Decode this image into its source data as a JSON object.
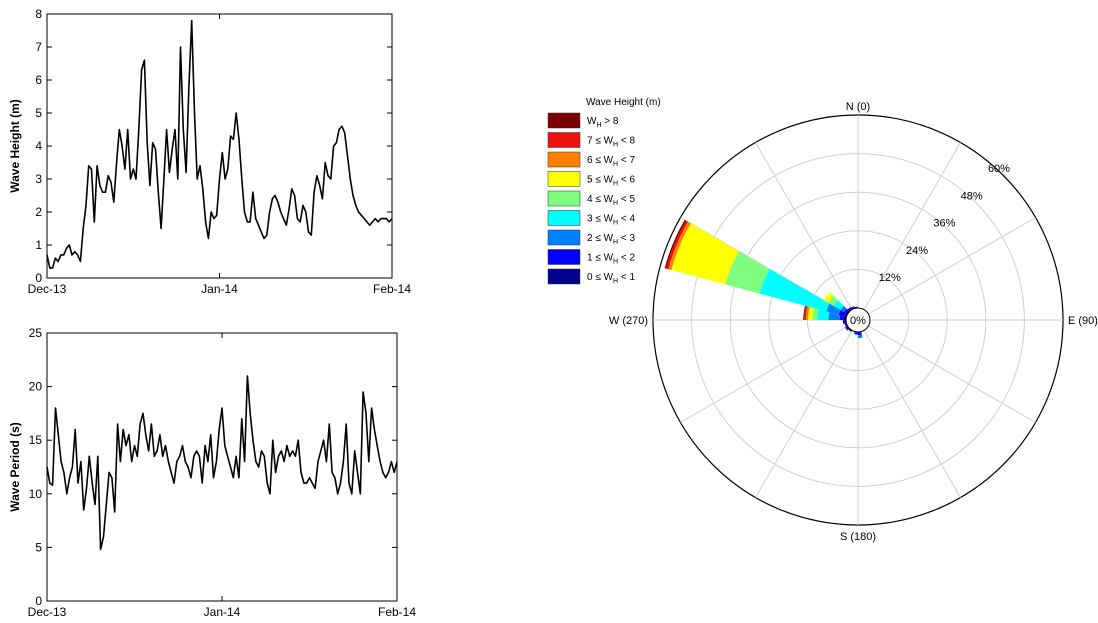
{
  "chart_data": [
    {
      "type": "line",
      "ylabel": "Wave Height (m)",
      "xlabel": "",
      "ylim": [
        0,
        8
      ],
      "yticks": [
        "0",
        "1",
        "2",
        "3",
        "4",
        "5",
        "6",
        "7",
        "8"
      ],
      "xticks": [
        {
          "label": "Dec-13",
          "x": 0
        },
        {
          "label": "Jan-14",
          "x": 31
        },
        {
          "label": "Feb-14",
          "x": 62
        }
      ],
      "xlim": [
        0,
        62
      ],
      "grid": false,
      "series": [
        {
          "color": "#000000",
          "x": [
            0,
            0.5,
            1,
            1.5,
            2,
            2.5,
            3,
            3.5,
            4,
            4.5,
            5,
            5.5,
            6,
            6.5,
            7,
            7.5,
            8,
            8.5,
            9,
            9.5,
            10,
            10.5,
            11,
            11.5,
            12,
            12.5,
            13,
            13.5,
            14,
            14.5,
            15,
            15.5,
            16,
            16.5,
            17,
            17.5,
            18,
            18.5,
            19,
            19.5,
            20,
            20.5,
            21,
            21.5,
            22,
            22.5,
            23,
            23.5,
            24,
            24.5,
            25,
            25.5,
            26,
            26.5,
            27,
            27.5,
            28,
            28.5,
            29,
            29.5,
            30,
            30.5,
            31,
            31.5,
            32,
            32.5,
            33,
            33.5,
            34,
            34.5,
            35,
            35.5,
            36,
            36.5,
            37,
            37.5,
            38,
            38.5,
            39,
            39.5,
            40,
            40.5,
            41,
            41.5,
            42,
            42.5,
            43,
            43.5,
            44,
            44.5,
            45,
            45.5,
            46,
            46.5,
            47,
            47.5,
            48,
            48.5,
            49,
            49.5,
            50,
            50.5,
            51,
            51.5,
            52,
            52.5,
            53,
            53.5,
            54,
            54.5,
            55,
            55.5,
            56,
            56.5,
            57,
            57.5,
            58,
            58.5,
            59,
            59.5,
            60,
            60.5,
            61,
            61.5,
            62
          ],
          "values": [
            0.7,
            0.3,
            0.3,
            0.6,
            0.5,
            0.7,
            0.7,
            0.9,
            1.0,
            0.7,
            0.8,
            0.7,
            0.5,
            1.5,
            2.2,
            3.4,
            3.3,
            1.7,
            3.4,
            2.8,
            2.6,
            2.6,
            3.1,
            2.9,
            2.3,
            3.5,
            4.5,
            4.0,
            3.3,
            4.5,
            3.0,
            3.3,
            3.0,
            4.5,
            6.3,
            6.6,
            4.1,
            2.8,
            4.1,
            3.9,
            2.6,
            1.5,
            3.0,
            4.5,
            3.2,
            3.9,
            4.5,
            3.0,
            7.0,
            4.5,
            3.2,
            5.8,
            7.8,
            5.0,
            3.0,
            3.4,
            2.7,
            1.7,
            1.2,
            2.0,
            1.8,
            1.9,
            3.0,
            3.8,
            3.0,
            3.3,
            4.3,
            4.2,
            5.0,
            4.2,
            3.0,
            2.0,
            1.7,
            1.7,
            2.6,
            1.8,
            1.6,
            1.4,
            1.2,
            1.3,
            2.0,
            2.4,
            2.5,
            2.3,
            2.0,
            1.8,
            1.6,
            2.1,
            2.7,
            2.5,
            1.8,
            1.7,
            2.2,
            2.0,
            1.4,
            1.3,
            2.6,
            3.1,
            2.8,
            2.4,
            3.5,
            3.1,
            3.0,
            4.0,
            4.1,
            4.5,
            4.6,
            4.4,
            3.7,
            3.0,
            2.5,
            2.2,
            2.0,
            1.9,
            1.8,
            1.7,
            1.6,
            1.7,
            1.8,
            1.7,
            1.8,
            1.8,
            1.8,
            1.7,
            1.8
          ]
        }
      ]
    },
    {
      "type": "line",
      "ylabel": "Wave Period (s)",
      "xlabel": "",
      "ylim": [
        0,
        25
      ],
      "yticks": [
        "0",
        "5",
        "10",
        "15",
        "20",
        "25"
      ],
      "xticks": [
        {
          "label": "Dec-13",
          "x": 0
        },
        {
          "label": "Jan-14",
          "x": 31
        },
        {
          "label": "Feb-14",
          "x": 62
        }
      ],
      "xlim": [
        0,
        62
      ],
      "grid": false,
      "series": [
        {
          "color": "#000000",
          "x": [
            0,
            0.5,
            1,
            1.5,
            2,
            2.5,
            3,
            3.5,
            4,
            4.5,
            5,
            5.5,
            6,
            6.5,
            7,
            7.5,
            8,
            8.5,
            9,
            9.5,
            10,
            10.5,
            11,
            11.5,
            12,
            12.5,
            13,
            13.5,
            14,
            14.5,
            15,
            15.5,
            16,
            16.5,
            17,
            17.5,
            18,
            18.5,
            19,
            19.5,
            20,
            20.5,
            21,
            21.5,
            22,
            22.5,
            23,
            23.5,
            24,
            24.5,
            25,
            25.5,
            26,
            26.5,
            27,
            27.5,
            28,
            28.5,
            29,
            29.5,
            30,
            30.5,
            31,
            31.5,
            32,
            32.5,
            33,
            33.5,
            34,
            34.5,
            35,
            35.5,
            36,
            36.5,
            37,
            37.5,
            38,
            38.5,
            39,
            39.5,
            40,
            40.5,
            41,
            41.5,
            42,
            42.5,
            43,
            43.5,
            44,
            44.5,
            45,
            45.5,
            46,
            46.5,
            47,
            47.5,
            48,
            48.5,
            49,
            49.5,
            50,
            50.5,
            51,
            51.5,
            52,
            52.5,
            53,
            53.5,
            54,
            54.5,
            55,
            55.5,
            56,
            56.5,
            57,
            57.5,
            58,
            58.5,
            59,
            59.5,
            60,
            60.5,
            61,
            61.5,
            62
          ],
          "values": [
            12.5,
            11.0,
            10.8,
            18.0,
            15.5,
            13.0,
            12.0,
            10.0,
            11.5,
            12.5,
            16.0,
            11.0,
            13.0,
            8.5,
            10.5,
            13.5,
            11.0,
            9.0,
            13.5,
            4.8,
            6.0,
            9.0,
            12.0,
            11.5,
            8.3,
            16.5,
            13.0,
            16.0,
            14.5,
            15.5,
            13.0,
            14.5,
            13.5,
            16.5,
            17.5,
            15.5,
            14.0,
            16.5,
            13.5,
            14.0,
            15.5,
            13.5,
            14.5,
            13.0,
            12.0,
            11.0,
            13.0,
            13.5,
            14.5,
            13.0,
            12.5,
            11.5,
            13.5,
            14.0,
            13.5,
            11.0,
            14.5,
            13.0,
            15.5,
            11.5,
            13.0,
            16.0,
            18.0,
            14.5,
            13.5,
            12.5,
            11.5,
            13.5,
            11.5,
            17.0,
            13.0,
            21.0,
            17.5,
            15.0,
            13.0,
            12.5,
            14.0,
            13.5,
            11.0,
            10.0,
            15.0,
            12.0,
            13.5,
            14.0,
            13.0,
            14.5,
            13.5,
            14.0,
            13.5,
            15.0,
            12.0,
            11.0,
            11.0,
            11.5,
            11.0,
            10.5,
            13.0,
            14.0,
            15.0,
            13.0,
            16.5,
            12.0,
            11.5,
            10.0,
            11.0,
            13.0,
            16.5,
            11.0,
            10.0,
            14.0,
            12.0,
            10.0,
            19.5,
            17.5,
            13.0,
            18.0,
            16.0,
            14.5,
            13.0,
            12.0,
            11.5,
            12.0,
            13.0,
            12.0,
            13.0
          ]
        }
      ]
    },
    {
      "type": "windrose",
      "legend_title": "Wave Height (m)",
      "legend": [
        {
          "label_pre": "W",
          "label_sub": "H",
          "label_post": " > 8",
          "color": "#7a0000"
        },
        {
          "label_pre": "7 ≤ W",
          "label_sub": "H",
          "label_post": " < 8",
          "color": "#ee1111"
        },
        {
          "label_pre": "6 ≤ W",
          "label_sub": "H",
          "label_post": " < 7",
          "color": "#ff8000"
        },
        {
          "label_pre": "5 ≤ W",
          "label_sub": "H",
          "label_post": " < 6",
          "color": "#ffff00"
        },
        {
          "label_pre": "4 ≤ W",
          "label_sub": "H",
          "label_post": " < 5",
          "color": "#7fff7f"
        },
        {
          "label_pre": "3 ≤ W",
          "label_sub": "H",
          "label_post": " < 4",
          "color": "#00ffff"
        },
        {
          "label_pre": "2 ≤ W",
          "label_sub": "H",
          "label_post": " < 3",
          "color": "#0080ff"
        },
        {
          "label_pre": "1 ≤ W",
          "label_sub": "H",
          "label_post": " < 2",
          "color": "#0000ff"
        },
        {
          "label_pre": "0 ≤ W",
          "label_sub": "H",
          "label_post": " < 1",
          "color": "#00008f"
        }
      ],
      "direction_labels": [
        "N (0)",
        "E (90)",
        "S (180)",
        "W (270)"
      ],
      "radial_labels": [
        "0%",
        "12%",
        "24%",
        "36%",
        "48%",
        "60%"
      ],
      "max_percent": 60,
      "bins": [
        {
          "direction": 292.5,
          "halfwidth": 7.5,
          "cum_percent": [
            0.7,
            2.5,
            6.5,
            28.0,
            39.0,
            56.3,
            57.3,
            58.0,
            58.5
          ]
        },
        {
          "direction": 277.5,
          "halfwidth": 7.5,
          "cum_percent": [
            0.9,
            2.0,
            5.5,
            9.0,
            10.5,
            11.8,
            12.5,
            13.0,
            13.3
          ]
        },
        {
          "direction": 307.5,
          "halfwidth": 7.5,
          "cum_percent": [
            0.5,
            1.2,
            2.5,
            5.0,
            7.0,
            8.5
          ]
        },
        {
          "direction": 322.5,
          "halfwidth": 7.5,
          "cum_percent": [
            0.4,
            0.9
          ]
        },
        {
          "direction": 337.5,
          "halfwidth": 7.5,
          "cum_percent": [
            0.3,
            0.7
          ]
        },
        {
          "direction": 352.5,
          "halfwidth": 7.5,
          "cum_percent": [
            0.2,
            0.4
          ]
        },
        {
          "direction": 262.5,
          "halfwidth": 7.5,
          "cum_percent": [
            0.5,
            1.0
          ]
        },
        {
          "direction": 247.5,
          "halfwidth": 7.5,
          "cum_percent": [
            0.3,
            0.6
          ]
        },
        {
          "direction": 232.5,
          "halfwidth": 7.5,
          "cum_percent": [
            0.4,
            0.9
          ]
        },
        {
          "direction": 217.5,
          "halfwidth": 7.5,
          "cum_percent": [
            0.3,
            0.5
          ]
        },
        {
          "direction": 172.5,
          "halfwidth": 7.5,
          "cum_percent": [
            0.3,
            1.0,
            1.9
          ]
        },
        {
          "direction": 187.5,
          "halfwidth": 7.5,
          "cum_percent": [
            0.3,
            0.8
          ]
        }
      ]
    }
  ]
}
